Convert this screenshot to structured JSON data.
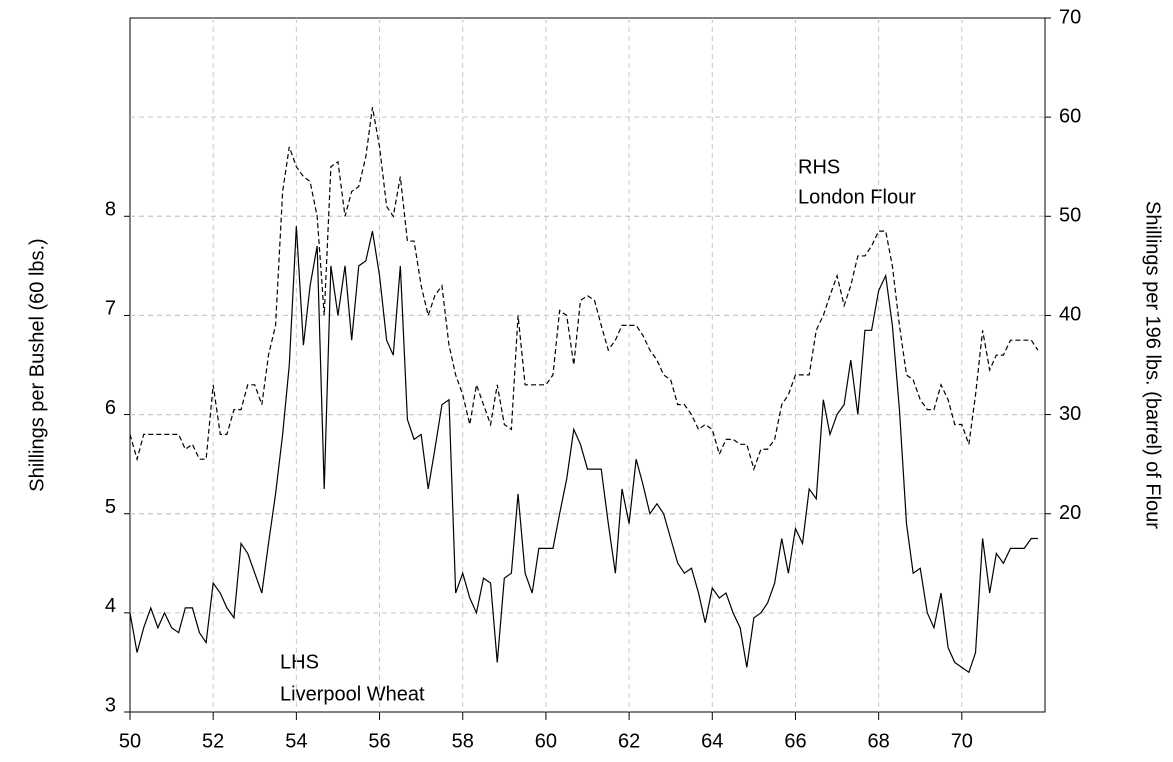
{
  "chart_data": {
    "type": "line",
    "y_label": "Shillings per Bushel (60 lbs.)",
    "y2_label": "Shillings per 196 lbs. (barrel) of Flour",
    "annotations": [
      "RHS",
      "London Flour",
      "LHS",
      "Liverpool Wheat"
    ],
    "x": [
      50,
      50.17,
      50.33,
      50.5,
      50.67,
      50.83,
      51,
      51.17,
      51.33,
      51.5,
      51.67,
      51.83,
      52,
      52.17,
      52.33,
      52.5,
      52.67,
      52.83,
      53,
      53.17,
      53.33,
      53.5,
      53.67,
      53.83,
      54,
      54.17,
      54.33,
      54.5,
      54.67,
      54.83,
      55,
      55.17,
      55.33,
      55.5,
      55.67,
      55.83,
      56,
      56.17,
      56.33,
      56.5,
      56.67,
      56.83,
      57,
      57.17,
      57.33,
      57.5,
      57.67,
      57.83,
      58,
      58.17,
      58.33,
      58.5,
      58.67,
      58.83,
      59,
      59.17,
      59.33,
      59.5,
      59.67,
      59.83,
      60,
      60.17,
      60.33,
      60.5,
      60.67,
      60.83,
      61,
      61.17,
      61.33,
      61.5,
      61.67,
      61.83,
      62,
      62.17,
      62.33,
      62.5,
      62.67,
      62.83,
      63,
      63.17,
      63.33,
      63.5,
      63.67,
      63.83,
      64,
      64.17,
      64.33,
      64.5,
      64.67,
      64.83,
      65,
      65.17,
      65.33,
      65.5,
      65.67,
      65.83,
      66,
      66.17,
      66.33,
      66.5,
      66.67,
      66.83,
      67,
      67.17,
      67.33,
      67.5,
      67.67,
      67.83,
      68,
      68.17,
      68.33,
      68.5,
      68.67,
      68.83,
      69,
      69.17,
      69.33,
      69.5,
      69.67,
      69.83,
      70,
      70.17,
      70.33,
      70.5,
      70.67,
      70.83,
      71,
      71.17,
      71.33,
      71.5,
      71.67,
      71.83
    ],
    "series": [
      {
        "name": "Liverpool Wheat",
        "color": "#000000",
        "dash": false,
        "axis": "y",
        "values": [
          4.0,
          3.6,
          3.85,
          4.05,
          3.85,
          4.0,
          3.85,
          3.8,
          4.05,
          4.05,
          3.8,
          3.7,
          4.3,
          4.2,
          4.05,
          3.95,
          4.7,
          4.6,
          4.4,
          4.2,
          4.7,
          5.2,
          5.8,
          6.5,
          7.9,
          6.7,
          7.3,
          7.7,
          5.25,
          7.5,
          7.0,
          7.5,
          6.75,
          7.5,
          7.55,
          7.85,
          7.4,
          6.75,
          6.6,
          7.5,
          5.95,
          5.75,
          5.8,
          5.25,
          5.65,
          6.1,
          6.15,
          4.2,
          4.4,
          4.15,
          4.0,
          4.35,
          4.3,
          3.5,
          4.35,
          4.4,
          5.2,
          4.4,
          4.2,
          4.65,
          4.65,
          4.65,
          5.0,
          5.35,
          5.85,
          5.7,
          5.45,
          5.45,
          5.45,
          4.9,
          4.4,
          5.25,
          4.9,
          5.55,
          5.3,
          5.0,
          5.1,
          5.0,
          4.75,
          4.5,
          4.4,
          4.45,
          4.2,
          3.9,
          4.25,
          4.15,
          4.2,
          4.0,
          3.85,
          3.45,
          3.95,
          4.0,
          4.1,
          4.3,
          4.75,
          4.4,
          4.85,
          4.7,
          5.25,
          5.15,
          6.15,
          5.8,
          6.0,
          6.1,
          6.55,
          6.0,
          6.85,
          6.85,
          7.25,
          7.4,
          6.9,
          6.05,
          4.9,
          4.4,
          4.45,
          4.0,
          3.85,
          4.2,
          3.65,
          3.5,
          3.45,
          3.4,
          3.6,
          4.75,
          4.2,
          4.6,
          4.5,
          4.65,
          4.65,
          4.65,
          4.75,
          4.75
        ]
      },
      {
        "name": "London Flour",
        "color": "#000000",
        "dash": true,
        "axis": "y2",
        "values": [
          28,
          25.5,
          28,
          28,
          28,
          28,
          28,
          28,
          26.5,
          27,
          25.5,
          25.5,
          33,
          28,
          28,
          30.5,
          30.5,
          33,
          33,
          31,
          36,
          39,
          52.5,
          57,
          55,
          54,
          53.5,
          50,
          40,
          55,
          55.5,
          50,
          52.5,
          53,
          56,
          61,
          57,
          51,
          50,
          54,
          47.5,
          47.5,
          43,
          40,
          42,
          43,
          37,
          34,
          32,
          29,
          33,
          31,
          29,
          33,
          29,
          28.5,
          40,
          33,
          33,
          33,
          33,
          34,
          40.5,
          40,
          35,
          41.5,
          42,
          41.5,
          39,
          36.5,
          37.5,
          39,
          39,
          39,
          38,
          36.5,
          35.5,
          34,
          33.5,
          31,
          31,
          30,
          28.5,
          29,
          28.5,
          26,
          27.5,
          27.5,
          27,
          27,
          24.5,
          26.5,
          26.5,
          27.5,
          31,
          32,
          34,
          34,
          34,
          38.5,
          40,
          42,
          44,
          41,
          43,
          46,
          46,
          47,
          48.5,
          48.5,
          45,
          39,
          34,
          33.5,
          31.5,
          30.5,
          30.5,
          33,
          31.5,
          29,
          29,
          27,
          32,
          38.5,
          34.5,
          36,
          36,
          37.5,
          37.5,
          37.5,
          37.5,
          36.5
        ]
      }
    ],
    "xlim": [
      50,
      72
    ],
    "xticks": [
      50,
      52,
      54,
      56,
      58,
      60,
      62,
      64,
      66,
      68,
      70
    ],
    "ylim": [
      3,
      10
    ],
    "yticks": [
      3,
      4,
      5,
      6,
      7,
      8
    ],
    "y2lim": [
      0,
      70
    ],
    "y2ticks": [
      20,
      30,
      40,
      50,
      60,
      70
    ],
    "grid": true
  }
}
